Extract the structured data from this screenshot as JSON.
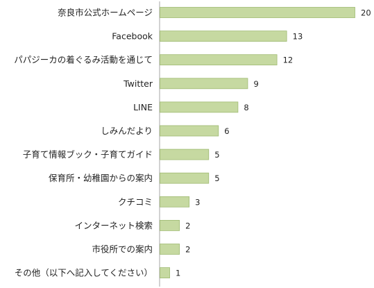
{
  "chart_data": {
    "type": "bar",
    "orientation": "horizontal",
    "title": "",
    "xlabel": "",
    "ylabel": "",
    "categories": [
      "奈良市公式ホームページ",
      "Facebook",
      "パパジーカの着ぐるみ活動を通じて",
      "Twitter",
      "LINE",
      "しみんだより",
      "子育て情報ブック・子育てガイド",
      "保育所・幼稚園からの案内",
      "クチコミ",
      "インターネット検索",
      "市役所での案内",
      "その他（以下へ記入してください）"
    ],
    "values": [
      20,
      13,
      12,
      9,
      8,
      6,
      5,
      5,
      3,
      2,
      2,
      1
    ],
    "xlim": [
      0,
      20
    ],
    "grid": false,
    "legend": "none",
    "colors": {
      "bar_fill": "#c6d9a1",
      "bar_stroke": "#9fba72",
      "axis": "#a6a6a6",
      "text": "#222222"
    }
  }
}
